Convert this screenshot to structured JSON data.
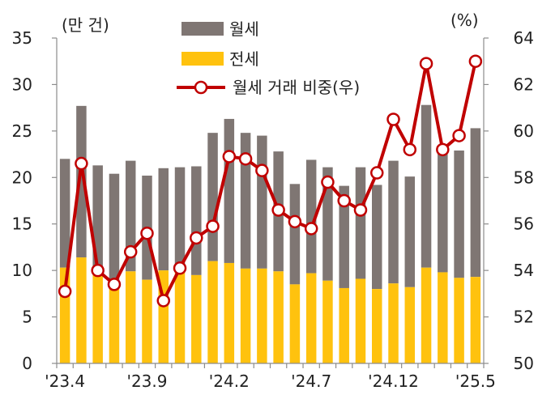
{
  "chart_data": {
    "type": "bar",
    "stacked": true,
    "left_unit": "(만 건)",
    "right_unit": "(%)",
    "ylim_left": [
      0,
      35
    ],
    "yticks_left": [
      "0",
      "5",
      "10",
      "15",
      "20",
      "25",
      "30",
      "35"
    ],
    "ylim_right": [
      50,
      64
    ],
    "yticks_right": [
      "50",
      "52",
      "54",
      "56",
      "58",
      "60",
      "62",
      "64"
    ],
    "x_tick_labels": [
      {
        "index": 0,
        "label": "'23.4"
      },
      {
        "index": 5,
        "label": "'23.9"
      },
      {
        "index": 10,
        "label": "'24.2"
      },
      {
        "index": 15,
        "label": "'24.7"
      },
      {
        "index": 20,
        "label": "'24.12"
      },
      {
        "index": 25,
        "label": "'25.5"
      }
    ],
    "categories": [
      "23.4",
      "23.5",
      "23.6",
      "23.7",
      "23.8",
      "23.9",
      "23.10",
      "23.11",
      "23.12",
      "24.1",
      "24.2",
      "24.3",
      "24.4",
      "24.5",
      "24.6",
      "24.7",
      "24.8",
      "24.9",
      "24.10",
      "24.11",
      "24.12",
      "25.1",
      "25.2",
      "25.3",
      "25.4",
      "25.5"
    ],
    "colors": {
      "monthly": "#7f7673",
      "jeonse": "#ffc20e",
      "ratio": "#c00000"
    },
    "series": [
      {
        "name": "월세",
        "axis": "left",
        "kind": "bar",
        "values": [
          11.7,
          16.3,
          11.5,
          11.4,
          11.9,
          11.2,
          11.0,
          11.3,
          11.7,
          13.8,
          15.5,
          14.6,
          14.3,
          12.9,
          10.8,
          12.2,
          12.2,
          11.0,
          12.0,
          11.2,
          13.2,
          11.9,
          17.5,
          12.8,
          13.7,
          16.0
        ]
      },
      {
        "name": "전세",
        "axis": "left",
        "kind": "bar",
        "values": [
          10.3,
          11.4,
          9.8,
          9.0,
          9.9,
          9.0,
          10.0,
          9.8,
          9.5,
          11.0,
          10.8,
          10.2,
          10.2,
          9.9,
          8.5,
          9.7,
          8.9,
          8.1,
          9.1,
          8.0,
          8.6,
          8.2,
          10.3,
          9.8,
          9.2,
          9.3
        ]
      },
      {
        "name": "월세 거래 비중(우)",
        "axis": "right",
        "kind": "line",
        "values": [
          53.1,
          58.6,
          54.0,
          53.4,
          54.8,
          55.6,
          52.7,
          54.1,
          55.4,
          55.9,
          58.9,
          58.8,
          58.3,
          56.6,
          56.1,
          55.8,
          57.8,
          57.0,
          56.6,
          58.2,
          60.5,
          59.2,
          62.9,
          59.2,
          59.8,
          63.0
        ]
      }
    ]
  }
}
